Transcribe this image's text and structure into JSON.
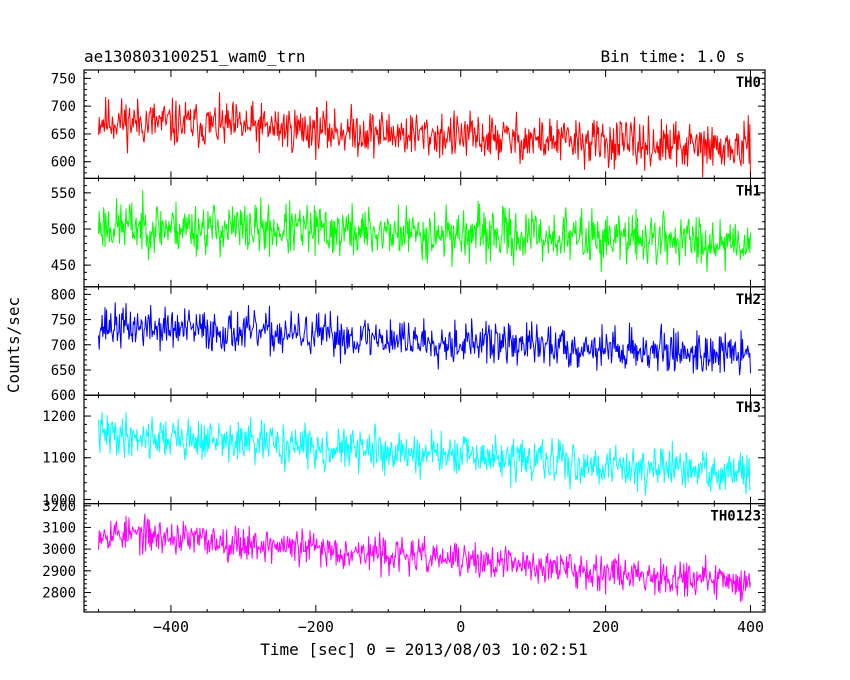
{
  "header": {
    "title": "ae130803100251_wam0_trn",
    "bin_time": "Bin time: 1.0 s"
  },
  "chart_data": {
    "type": "line",
    "xlabel": "Time [sec] 0 = 2013/08/03 10:02:51",
    "ylabel": "Counts/sec",
    "xlim": [
      -520,
      420
    ],
    "xticks": [
      -400,
      -200,
      0,
      200,
      400
    ],
    "x_range": [
      -500,
      400
    ],
    "panels": [
      {
        "name": "TH0",
        "color": "#ff0000",
        "ylim": [
          570,
          765
        ],
        "yticks": [
          600,
          650,
          700,
          750
        ],
        "trend": [
          675,
          622
        ],
        "noise": 42,
        "seed": 11
      },
      {
        "name": "TH1",
        "color": "#00ff00",
        "ylim": [
          420,
          570
        ],
        "yticks": [
          450,
          500,
          550
        ],
        "trend": [
          505,
          483
        ],
        "noise": 36,
        "seed": 23
      },
      {
        "name": "TH2",
        "color": "#0000ff",
        "ylim": [
          600,
          815
        ],
        "yticks": [
          600,
          650,
          700,
          750,
          800
        ],
        "trend": [
          738,
          680
        ],
        "noise": 42,
        "seed": 37
      },
      {
        "name": "TH3",
        "color": "#00ffff",
        "ylim": [
          990,
          1250
        ],
        "yticks": [
          1000,
          1100,
          1200
        ],
        "trend": [
          1158,
          1060
        ],
        "noise": 50,
        "seed": 41
      },
      {
        "name": "TH0123",
        "color": "#ff00ff",
        "ylim": [
          2710,
          3210
        ],
        "yticks": [
          2800,
          2900,
          3000,
          3100,
          3200
        ],
        "trend": [
          3080,
          2845
        ],
        "noise": 80,
        "seed": 53
      }
    ]
  }
}
